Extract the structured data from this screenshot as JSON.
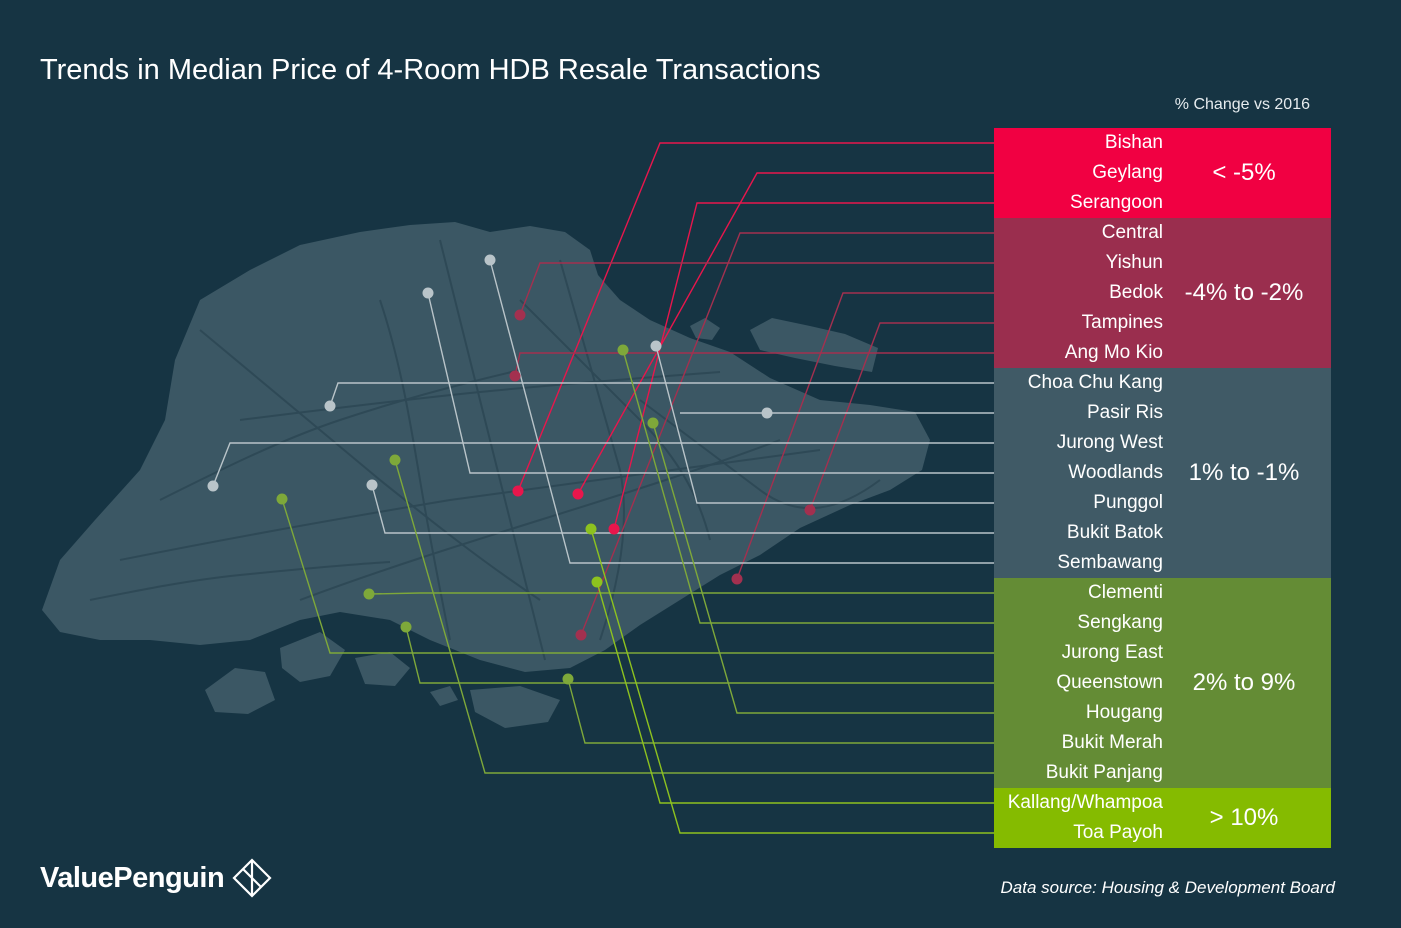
{
  "title": "Trends in Median Price of 4-Room HDB Resale Transactions",
  "subtitle": "% Change vs 2016",
  "colors": {
    "background": "#163443",
    "land": "#3b5764",
    "roads": "#2d4855",
    "group_lt_minus5": "#f10042",
    "group_minus4_minus2": "#9a2e4e",
    "group_flat": "#405a66",
    "group_2_9": "#648c35",
    "group_gt10": "#85bb00"
  },
  "groups": [
    {
      "range": "< -5%",
      "color": "#f10042",
      "line": "#e8164c",
      "towns": [
        "Bishan",
        "Geylang",
        "Serangoon"
      ]
    },
    {
      "range": "-4% to -2%",
      "color": "#9a2e4e",
      "line": "#a3304f",
      "towns": [
        "Central",
        "Yishun",
        "Bedok",
        "Tampines",
        "Ang Mo Kio"
      ]
    },
    {
      "range": "1% to -1%",
      "color": "#405a66",
      "line": "#b9c4c9",
      "towns": [
        "Choa Chu Kang",
        "Pasir Ris",
        "Jurong West",
        "Woodlands",
        "Punggol",
        "Bukit Batok",
        "Sembawang"
      ]
    },
    {
      "range": "2% to 9%",
      "color": "#648c35",
      "line": "#7ea83a",
      "towns": [
        "Clementi",
        "Sengkang",
        "Jurong East",
        "Queenstown",
        "Hougang",
        "Bukit Merah",
        "Bukit Panjang"
      ]
    },
    {
      "range": "> 10%",
      "color": "#85bb00",
      "line": "#8dc21f",
      "towns": [
        "Kallang/Whampoa",
        "Toa Payoh"
      ]
    }
  ],
  "brand": "ValuePenguin",
  "source": "Data source:  Housing & Development Board"
}
